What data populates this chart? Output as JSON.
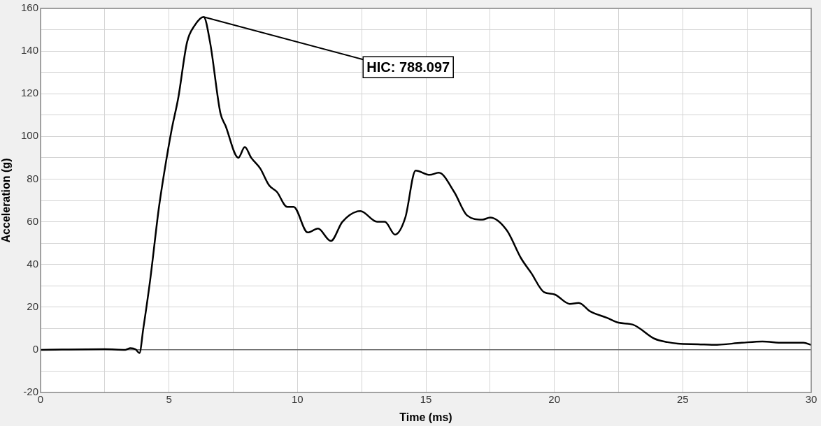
{
  "chart_data": {
    "type": "line",
    "xlabel": "Time (ms)",
    "ylabel": "Acceleration (g)",
    "x": [
      0,
      2.5,
      3.3,
      3.5,
      3.7,
      3.85,
      4.0,
      4.27,
      4.6,
      4.8,
      5.1,
      5.36,
      5.7,
      6.0,
      6.35,
      6.6,
      7.0,
      7.2,
      7.7,
      7.95,
      8.2,
      8.55,
      8.9,
      9.2,
      9.6,
      9.85,
      10.4,
      10.8,
      11.3,
      11.75,
      12.45,
      13.1,
      13.4,
      13.8,
      14.2,
      14.6,
      15.15,
      15.5,
      16.1,
      16.6,
      17.2,
      17.5,
      18.15,
      18.7,
      19.1,
      19.6,
      20.0,
      20.6,
      20.95,
      21.4,
      22.05,
      22.5,
      23.06,
      23.9,
      24.4,
      24.8,
      25.6,
      26.2,
      27.3,
      28.1,
      28.9,
      29.7,
      30
    ],
    "series": [
      {
        "color": "#000000",
        "values": [
          0,
          0.3,
          0,
          0.8,
          0.2,
          -1.5,
          10,
          33,
          66,
          82,
          103,
          118,
          144,
          152,
          156,
          144,
          111,
          105,
          90,
          95,
          90,
          85,
          77,
          74,
          67,
          67,
          55,
          56.8,
          51,
          60,
          65,
          60,
          60,
          54,
          62,
          84,
          82,
          83,
          74,
          63,
          61,
          62,
          56,
          43,
          36,
          27,
          26,
          21.5,
          22,
          18,
          15,
          12.7,
          11.8,
          5.2,
          3.6,
          2.9,
          2.6,
          2.3,
          3.3,
          3.9,
          3.3,
          3.3,
          2.3
        ]
      }
    ],
    "xlim": [
      0,
      30
    ],
    "ylim": [
      -20,
      160
    ],
    "xticks": [
      0,
      {
        "value": 2.5,
        "label": null
      },
      5,
      {
        "value": 7.5,
        "label": null
      },
      10,
      {
        "value": 12.5,
        "label": null
      },
      15,
      {
        "value": 17.5,
        "label": null
      },
      20,
      {
        "value": 22.5,
        "label": null
      },
      25,
      {
        "value": 27.5,
        "label": null
      },
      30
    ],
    "yticks": [
      -20,
      {
        "value": -10,
        "label": null
      },
      0,
      {
        "value": 10,
        "label": null
      },
      20,
      {
        "value": 30,
        "label": null
      },
      40,
      {
        "value": 50,
        "label": null
      },
      60,
      {
        "value": 70,
        "label": null
      },
      80,
      {
        "value": 90,
        "label": null
      },
      100,
      {
        "value": 110,
        "label": null
      },
      120,
      {
        "value": 130,
        "label": null
      },
      140,
      {
        "value": 150,
        "label": null
      },
      160
    ],
    "grid": true,
    "marker": "none",
    "line_style": "solid",
    "annotations": [
      {
        "text": "HIC: 788.097",
        "x": 6.35,
        "y": 156
      }
    ]
  }
}
